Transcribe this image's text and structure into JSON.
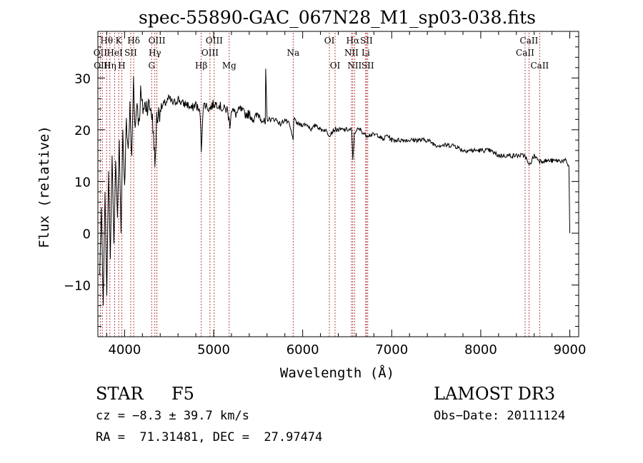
{
  "chart_data": {
    "type": "line",
    "title": "spec-55890-GAC_067N28_M1_sp03-038.fits",
    "xlabel": "Wavelength (Å)",
    "ylabel": "Flux (relative)",
    "xlim": [
      3700,
      9100
    ],
    "ylim": [
      -20,
      39
    ],
    "x_ticks": [
      {
        "value": 4000,
        "label": "4000"
      },
      {
        "value": 5000,
        "label": "5000"
      },
      {
        "value": 6000,
        "label": "6000"
      },
      {
        "value": 7000,
        "label": "7000"
      },
      {
        "value": 8000,
        "label": "8000"
      },
      {
        "value": 9000,
        "label": "9000"
      }
    ],
    "y_ticks": [
      {
        "value": -10,
        "label": "−10"
      },
      {
        "value": 0,
        "label": "0"
      },
      {
        "value": 10,
        "label": "10"
      },
      {
        "value": 20,
        "label": "20"
      },
      {
        "value": 30,
        "label": "30"
      }
    ],
    "series": [
      {
        "name": "spectrum",
        "x": [
          3720,
          3740,
          3760,
          3780,
          3800,
          3820,
          3840,
          3860,
          3880,
          3900,
          3920,
          3940,
          3960,
          3980,
          4000,
          4020,
          4040,
          4060,
          4080,
          4100,
          4120,
          4140,
          4160,
          4180,
          4200,
          4250,
          4300,
          4330,
          4340,
          4360,
          4400,
          4450,
          4500,
          4550,
          4600,
          4650,
          4700,
          4750,
          4800,
          4850,
          4861,
          4880,
          4900,
          4950,
          5000,
          5050,
          5100,
          5150,
          5183,
          5200,
          5250,
          5300,
          5350,
          5400,
          5450,
          5500,
          5550,
          5580,
          5585,
          5600,
          5650,
          5700,
          5750,
          5800,
          5850,
          5893,
          5900,
          5950,
          6000,
          6050,
          6100,
          6150,
          6200,
          6250,
          6300,
          6350,
          6400,
          6450,
          6500,
          6550,
          6563,
          6580,
          6600,
          6650,
          6700,
          6750,
          6800,
          6850,
          6900,
          6950,
          7000,
          7100,
          7200,
          7300,
          7400,
          7500,
          7600,
          7700,
          7800,
          7900,
          8000,
          8100,
          8200,
          8300,
          8400,
          8498,
          8542,
          8600,
          8662,
          8700,
          8800,
          8900,
          8950,
          8990,
          9000
        ],
        "y": [
          -8,
          5,
          -14,
          8,
          -12,
          12,
          -5,
          15,
          -2,
          14,
          3,
          18,
          0,
          20,
          8,
          22,
          16,
          24,
          14,
          30,
          20,
          26,
          21,
          27,
          24,
          25,
          24,
          18,
          12,
          22,
          24,
          25,
          26,
          25,
          26,
          25,
          25,
          24,
          25,
          23,
          16,
          24,
          25,
          24,
          25,
          25,
          24,
          24,
          21,
          24,
          23,
          24,
          23,
          23,
          22,
          23,
          22,
          21,
          31,
          22,
          22,
          22,
          21,
          22,
          21,
          18,
          22,
          21,
          21,
          21,
          20,
          21,
          20,
          20,
          19,
          20,
          20,
          20,
          20,
          20,
          14,
          19,
          20,
          20,
          19,
          19,
          19,
          19,
          18,
          19,
          18,
          18,
          18,
          18,
          18,
          17,
          17,
          17,
          16,
          16,
          16,
          16,
          15,
          15,
          15,
          15,
          13,
          15,
          14,
          14,
          14,
          14,
          14,
          13,
          0
        ]
      }
    ],
    "line_markers": [
      {
        "label": "Hθ",
        "x": 3798,
        "row": 0
      },
      {
        "label": "OII",
        "x": 3727,
        "row": 1
      },
      {
        "label": "OIII",
        "x": 3750,
        "row": 2
      },
      {
        "label": "K",
        "x": 3934,
        "row": 0
      },
      {
        "label": "Hη",
        "x": 3835,
        "row": 2
      },
      {
        "label": "HeI",
        "x": 3889,
        "row": 1
      },
      {
        "label": "H",
        "x": 3969,
        "row": 2
      },
      {
        "label": "Hδ",
        "x": 4102,
        "row": 0
      },
      {
        "label": "SII",
        "x": 4069,
        "row": 1
      },
      {
        "label": "OIII",
        "x": 4363,
        "row": 0
      },
      {
        "label": "Hγ",
        "x": 4340,
        "row": 1
      },
      {
        "label": "G",
        "x": 4304,
        "row": 2
      },
      {
        "label": "Hβ",
        "x": 4861,
        "row": 2
      },
      {
        "label": "OIII",
        "x": 5007,
        "row": 0
      },
      {
        "label": "OIII",
        "x": 4959,
        "row": 1
      },
      {
        "label": "Mg",
        "x": 5175,
        "row": 2
      },
      {
        "label": "Na",
        "x": 5893,
        "row": 1
      },
      {
        "label": "OI",
        "x": 6300,
        "row": 0
      },
      {
        "label": "OI",
        "x": 6364,
        "row": 2
      },
      {
        "label": "Hα",
        "x": 6563,
        "row": 0
      },
      {
        "label": "NII",
        "x": 6548,
        "row": 1
      },
      {
        "label": "NII",
        "x": 6583,
        "row": 2
      },
      {
        "label": "SII",
        "x": 6716,
        "row": 0
      },
      {
        "label": "Li",
        "x": 6708,
        "row": 1
      },
      {
        "label": "SII",
        "x": 6731,
        "row": 2
      },
      {
        "label": "CaII",
        "x": 8542,
        "row": 0
      },
      {
        "label": "CaII",
        "x": 8498,
        "row": 1
      },
      {
        "label": "CaII",
        "x": 8662,
        "row": 2
      }
    ]
  },
  "info": {
    "class_label": "STAR",
    "subclass_label": "F5",
    "survey": "LAMOST DR3",
    "cz": "cz = −8.3 ± 39.7 km/s",
    "obs_date": "Obs−Date: 20111124",
    "coords": "RA =  71.31481, DEC =  27.97474"
  }
}
